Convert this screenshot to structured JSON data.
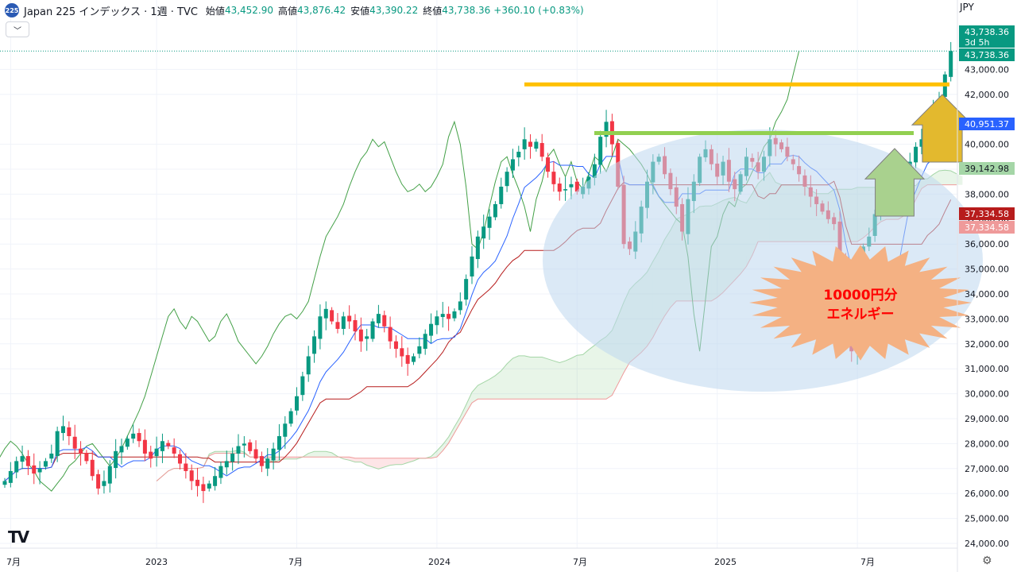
{
  "header": {
    "logo_text": "225",
    "symbol": "Japan 225 インデックス · 1週 · TVC",
    "open_label": "始値",
    "open": "43,452.90",
    "high_label": "高値",
    "high": "43,876.42",
    "low_label": "安値",
    "low": "43,390.22",
    "close_label": "終値",
    "close": "43,738.36",
    "change": "+360.10 (+0.83%)"
  },
  "collapse_icon": "chevron-down",
  "currency": "JPY",
  "tv_logo": "TV",
  "settings_icon": "gear",
  "colors": {
    "up": "#089981",
    "down": "#f23645",
    "accent": "#2962ff"
  },
  "chart_data": {
    "type": "candlestick",
    "y_ticks": [
      "24,000.00",
      "25,000.00",
      "26,000.00",
      "27,000.00",
      "28,000.00",
      "29,000.00",
      "30,000.00",
      "31,000.00",
      "32,000.00",
      "33,000.00",
      "34,000.00",
      "35,000.00",
      "36,000.00",
      "37,000.00",
      "38,000.00",
      "39,000.00",
      "40,000.00",
      "42,000.00",
      "43,000.00"
    ],
    "y_tick_values": [
      24000,
      25000,
      26000,
      27000,
      28000,
      29000,
      30000,
      31000,
      32000,
      33000,
      34000,
      35000,
      36000,
      37000,
      38000,
      39000,
      40000,
      42000,
      43000
    ],
    "x_ticks": [
      "7月",
      "2023",
      "7月",
      "2024",
      "7月",
      "2025",
      "7月"
    ],
    "ylim": [
      23700,
      45600
    ],
    "grid": true,
    "price_labels": [
      {
        "text": "43,738.36",
        "sub": "3d 5h",
        "value": 43738.36,
        "color": "#089981"
      },
      {
        "text": "43,738.36",
        "value": 43738.36,
        "color": "#089981"
      },
      {
        "text": "40,951.37",
        "value": 40951.37,
        "color": "#2962ff"
      },
      {
        "text": "39,142.98",
        "value": 39142.98,
        "color": "#a5d6a7"
      },
      {
        "text": "37,334.58",
        "value": 37334.58,
        "color": "#b71c1c"
      },
      {
        "text": "37,334.58",
        "value": 37334.58,
        "color": "#ef9a9a"
      }
    ],
    "close_series": [
      26500,
      26900,
      27300,
      27500,
      27100,
      26800,
      27000,
      27300,
      27600,
      28500,
      28700,
      28300,
      27800,
      27600,
      27300,
      26700,
      26200,
      26500,
      27100,
      27700,
      27900,
      28200,
      28400,
      28100,
      27600,
      27400,
      27800,
      28100,
      27900,
      27600,
      27200,
      26900,
      26500,
      26300,
      26100,
      26400,
      26700,
      27100,
      27300,
      27600,
      27900,
      28000,
      27700,
      27400,
      27100,
      27400,
      27800,
      28300,
      28800,
      29300,
      29900,
      30700,
      31500,
      32300,
      33100,
      33400,
      32900,
      32600,
      33100,
      32900,
      32500,
      32100,
      32300,
      32900,
      33200,
      32700,
      32100,
      31800,
      31500,
      31200,
      31500,
      31900,
      32400,
      32800,
      33100,
      33200,
      33000,
      33300,
      33700,
      34600,
      35500,
      36300,
      36700,
      37100,
      37600,
      38300,
      38900,
      39400,
      39700,
      40200,
      39900,
      40100,
      39500,
      38900,
      38400,
      38100,
      38200,
      38400,
      38100,
      38300,
      38700,
      39200,
      40300,
      40900,
      40000,
      38300,
      36000,
      35800,
      36500,
      37500,
      38500,
      39300,
      39500,
      38800,
      38200,
      37500,
      36500,
      37800,
      38500,
      39500,
      39800,
      39200,
      38700,
      39300,
      38500,
      38200,
      38800,
      39500,
      39300,
      38900,
      39500,
      40200,
      40000,
      39800,
      39500,
      39200,
      38800,
      38300,
      37900,
      37600,
      37300,
      37000,
      36800,
      35500,
      33200,
      31700,
      33800,
      35900,
      36300,
      37200,
      37700,
      37500,
      38200,
      38400,
      38900,
      39300,
      39900,
      40200,
      40900,
      41300,
      41800,
      42800,
      43738
    ],
    "annotations": [
      {
        "text": "10000円分",
        "line2": "エネルギー",
        "shape": "starburst",
        "color": "#f4b183",
        "text_color": "#ff0000"
      },
      {
        "shape": "horizontal-line",
        "value": 42400,
        "color": "#ffc000"
      },
      {
        "shape": "horizontal-line",
        "value": 40450,
        "color": "#92d050"
      },
      {
        "shape": "up-arrow",
        "color": "#a9d18e"
      },
      {
        "shape": "up-arrow",
        "color": "#e3b92e"
      },
      {
        "shape": "ellipse",
        "color": "#bdd7ee"
      }
    ]
  }
}
